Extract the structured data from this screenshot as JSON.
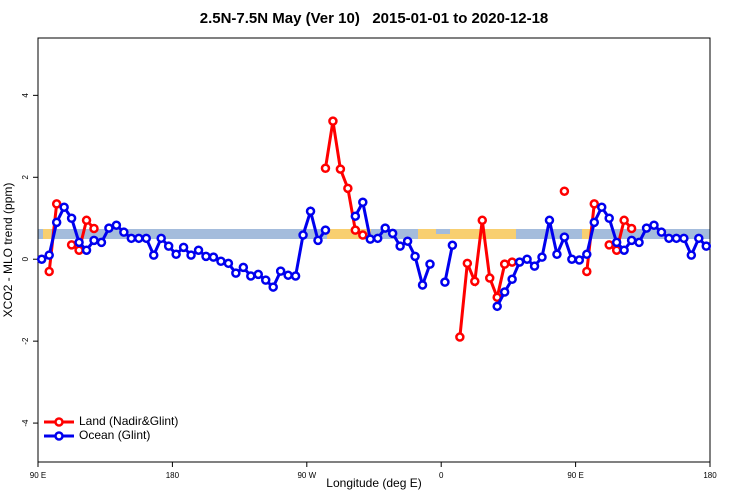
{
  "chart_data": {
    "type": "line",
    "title": "2.5N-7.5N May (Ver 10)   2015-01-01 to 2020-12-18",
    "x_label": "Longitude (deg E)",
    "y_label": "XCO2 - MLO trend (ppm)",
    "xlim": [
      90,
      540
    ],
    "ylim": [
      -4.95,
      5.4
    ],
    "xticks": [
      {
        "value": 90,
        "label": "90 E"
      },
      180,
      {
        "value": 270,
        "label": "90 W"
      },
      {
        "value": 360,
        "label": "0"
      },
      {
        "value": 450,
        "label": "90 E"
      },
      {
        "value": 540,
        "label": "180"
      }
    ],
    "yticks": [
      -4,
      -2,
      0,
      2,
      4
    ],
    "legend": "bottom-left",
    "x": [
      92.5,
      97.5,
      102.5,
      107.5,
      112.5,
      117.5,
      122.5,
      127.5,
      132.5,
      137.5,
      142.5,
      147.5,
      152.5,
      157.5,
      162.5,
      167.5,
      172.5,
      177.5,
      182.5,
      187.5,
      192.5,
      197.5,
      202.5,
      207.5,
      212.5,
      217.5,
      222.5,
      227.5,
      232.5,
      237.5,
      242.5,
      247.5,
      252.5,
      257.5,
      262.5,
      267.5,
      272.5,
      277.5,
      282.5,
      287.5,
      292.5,
      297.5,
      302.5,
      307.5,
      312.5,
      317.5,
      322.5,
      327.5,
      332.5,
      337.5,
      342.5,
      347.5,
      352.5,
      357.5,
      362.5,
      367.5,
      372.5,
      377.5,
      382.5,
      387.5,
      392.5,
      397.5,
      402.5,
      407.5,
      412.5,
      417.5,
      422.5,
      427.5,
      432.5,
      437.5,
      442.5,
      447.5,
      452.5,
      457.5,
      462.5,
      467.5,
      472.5,
      477.5,
      482.5,
      487.5,
      492.5,
      497.5,
      502.5,
      507.5,
      512.5,
      517.5,
      522.5,
      527.5,
      532.5,
      537.5
    ],
    "series": [
      {
        "name": "Land (Nadir&Glint)",
        "color": "#ff0000",
        "values": [
          null,
          -0.3,
          1.35,
          null,
          0.35,
          0.22,
          0.95,
          0.75,
          null,
          null,
          null,
          null,
          null,
          null,
          null,
          null,
          null,
          null,
          null,
          null,
          null,
          null,
          null,
          null,
          null,
          null,
          null,
          null,
          null,
          null,
          null,
          null,
          null,
          null,
          null,
          null,
          null,
          null,
          2.22,
          3.37,
          2.2,
          1.73,
          0.71,
          0.59,
          null,
          null,
          null,
          null,
          null,
          null,
          null,
          null,
          null,
          null,
          null,
          null,
          -1.9,
          -0.1,
          -0.54,
          0.95,
          -0.46,
          -0.93,
          -0.12,
          -0.07,
          null,
          null,
          null,
          null,
          null,
          null,
          1.66,
          null,
          null,
          -0.3,
          1.35,
          null,
          0.35,
          0.22,
          0.95,
          0.75,
          null,
          null,
          null,
          null,
          null,
          null,
          null,
          null,
          null,
          null
        ]
      },
      {
        "name": "Ocean (Glint)",
        "color": "#0000ee",
        "values": [
          0,
          0.1,
          0.9,
          1.27,
          1.0,
          0.41,
          0.22,
          0.46,
          0.41,
          0.76,
          0.83,
          0.66,
          0.51,
          0.51,
          0.51,
          0.1,
          0.51,
          0.32,
          0.12,
          0.29,
          0.1,
          0.22,
          0.07,
          0.05,
          -0.05,
          -0.1,
          -0.34,
          -0.2,
          -0.41,
          -0.37,
          -0.51,
          -0.68,
          -0.29,
          -0.39,
          -0.41,
          0.59,
          1.17,
          0.46,
          0.71,
          null,
          null,
          null,
          1.05,
          1.39,
          0.49,
          0.51,
          0.76,
          0.63,
          0.32,
          0.44,
          0.07,
          -0.63,
          -0.12,
          null,
          -0.56,
          0.34,
          null,
          null,
          null,
          null,
          null,
          -1.15,
          -0.8,
          -0.49,
          -0.07,
          0,
          -0.17,
          0.05,
          0.95,
          0.12,
          0.54,
          0,
          -0.02,
          0.12,
          0.9,
          1.27,
          1.0,
          0.41,
          0.22,
          0.46,
          0.41,
          0.76,
          0.83,
          0.66,
          0.51,
          0.51,
          0.51,
          0.1,
          0.51,
          0.32
        ]
      }
    ]
  }
}
